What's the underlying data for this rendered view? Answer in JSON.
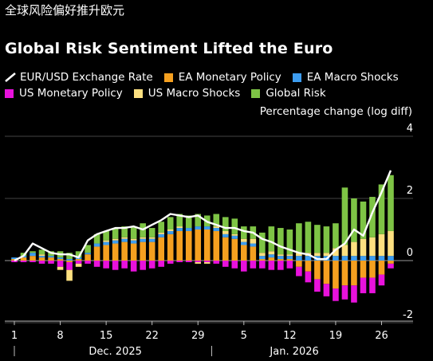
{
  "page": {
    "top_caption": "全球风险偏好推升欧元"
  },
  "colors": {
    "eurusd": "#ffffff",
    "ea_monetary": "#f5a020",
    "ea_macro": "#3d9df0",
    "us_monetary": "#e812dc",
    "us_macro": "#fde080",
    "global_risk": "#7ec445",
    "gridline": "#444444",
    "zero_line": "#999999"
  },
  "chart_data": {
    "type": "bar",
    "stacked": true,
    "title": "Global Risk Sentiment Lifted the Euro",
    "ylabel": "Percentage change (log diff)",
    "ylim": [
      -2.2,
      4.2
    ],
    "y_ticks": [
      4,
      2,
      0,
      -2
    ],
    "x_tick_labels": [
      {
        "label": "1",
        "index": 0
      },
      {
        "label": "8",
        "index": 5
      },
      {
        "label": "15",
        "index": 10
      },
      {
        "label": "22",
        "index": 15
      },
      {
        "label": "29",
        "index": 20
      },
      {
        "label": "5",
        "index": 25
      },
      {
        "label": "12",
        "index": 30
      },
      {
        "label": "19",
        "index": 35
      },
      {
        "label": "26",
        "index": 40
      }
    ],
    "month_labels": [
      {
        "label": "Dec. 2025",
        "index": 11
      },
      {
        "label": "Jan. 2026",
        "index": 30.5
      }
    ],
    "month_separators": [
      0,
      22
    ],
    "legend": [
      {
        "key": "eurusd",
        "name": "EUR/USD Exchange Rate",
        "kind": "line"
      },
      {
        "key": "ea_monetary",
        "name": "EA Monetary Policy",
        "kind": "bar"
      },
      {
        "key": "ea_macro",
        "name": "EA Macro Shocks",
        "kind": "bar"
      },
      {
        "key": "us_monetary",
        "name": "US Monetary Policy",
        "kind": "bar"
      },
      {
        "key": "us_macro",
        "name": "US Macro Shocks",
        "kind": "bar"
      },
      {
        "key": "global_risk",
        "name": "Global Risk",
        "kind": "bar"
      }
    ],
    "n_bars": 42,
    "series": [
      {
        "key": "ea_monetary",
        "name": "EA Monetary Policy",
        "values": [
          0.05,
          0.1,
          0.15,
          0.1,
          0.1,
          0.05,
          -0.05,
          0.05,
          0.2,
          0.45,
          0.5,
          0.55,
          0.6,
          0.55,
          0.6,
          0.6,
          0.75,
          0.85,
          0.95,
          0.95,
          1.0,
          1.0,
          0.95,
          0.75,
          0.7,
          0.5,
          0.45,
          0.05,
          0.1,
          0.05,
          0.05,
          -0.2,
          -0.35,
          -0.6,
          -0.75,
          -0.9,
          -0.8,
          -0.8,
          -0.55,
          -0.55,
          -0.45,
          -0.1
        ]
      },
      {
        "key": "ea_macro",
        "name": "EA Macro Shocks",
        "values": [
          0.05,
          0.05,
          0.1,
          0.05,
          0.05,
          0.05,
          0.05,
          0.05,
          0.05,
          0.1,
          0.1,
          0.1,
          0.1,
          0.1,
          0.1,
          0.1,
          0.1,
          0.1,
          0.1,
          0.1,
          0.1,
          0.1,
          0.1,
          0.1,
          0.1,
          0.1,
          0.1,
          0.1,
          0.1,
          0.1,
          0.1,
          0.15,
          0.15,
          0.15,
          0.15,
          0.15,
          0.15,
          0.15,
          0.15,
          0.15,
          0.15,
          0.15
        ]
      },
      {
        "key": "us_monetary",
        "name": "US Monetary Policy",
        "values": [
          -0.05,
          -0.05,
          -0.05,
          -0.1,
          -0.1,
          -0.2,
          -0.25,
          -0.1,
          -0.1,
          -0.2,
          -0.25,
          -0.3,
          -0.25,
          -0.35,
          -0.3,
          -0.25,
          -0.2,
          -0.1,
          -0.05,
          -0.05,
          -0.05,
          -0.05,
          -0.1,
          -0.2,
          -0.25,
          -0.35,
          -0.25,
          -0.25,
          -0.3,
          -0.3,
          -0.25,
          -0.3,
          -0.35,
          -0.4,
          -0.4,
          -0.4,
          -0.45,
          -0.55,
          -0.5,
          -0.5,
          -0.35,
          -0.15
        ]
      },
      {
        "key": "us_macro",
        "name": "US Macro Shocks",
        "values": [
          0.0,
          0.0,
          0.0,
          0.05,
          0.0,
          -0.1,
          -0.35,
          -0.1,
          0.0,
          0.0,
          0.05,
          0.05,
          0.05,
          0.05,
          0.05,
          0.05,
          0.05,
          0.05,
          0.05,
          0.0,
          -0.05,
          -0.05,
          0.05,
          0.1,
          0.05,
          0.1,
          0.15,
          0.1,
          0.1,
          0.05,
          0.05,
          0.1,
          0.1,
          0.1,
          0.1,
          0.25,
          0.35,
          0.45,
          0.55,
          0.6,
          0.7,
          0.8
        ]
      },
      {
        "key": "global_risk",
        "name": "Global Risk",
        "values": [
          0.0,
          0.1,
          0.05,
          0.15,
          0.15,
          0.2,
          0.2,
          0.2,
          0.25,
          0.3,
          0.3,
          0.35,
          0.35,
          0.4,
          0.45,
          0.3,
          0.35,
          0.4,
          0.4,
          0.4,
          0.4,
          0.35,
          0.4,
          0.45,
          0.5,
          0.4,
          0.4,
          0.65,
          0.8,
          0.85,
          0.8,
          0.95,
          1.0,
          0.9,
          0.85,
          0.8,
          1.85,
          1.4,
          1.2,
          1.3,
          1.6,
          1.8
        ]
      },
      {
        "key": "eurusd",
        "name": "EUR/USD Exchange Rate",
        "kind": "line",
        "values": [
          0.0,
          0.15,
          0.55,
          0.4,
          0.25,
          0.2,
          0.2,
          0.1,
          0.65,
          0.85,
          0.95,
          1.05,
          1.05,
          1.1,
          1.0,
          1.15,
          1.3,
          1.5,
          1.45,
          1.4,
          1.45,
          1.25,
          1.15,
          1.05,
          1.05,
          0.95,
          0.9,
          0.7,
          0.6,
          0.45,
          0.35,
          0.25,
          0.2,
          0.05,
          0.05,
          0.35,
          0.55,
          1.0,
          0.8,
          1.55,
          2.2,
          2.9
        ]
      }
    ]
  }
}
